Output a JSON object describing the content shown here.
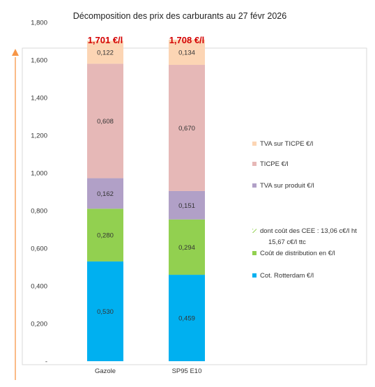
{
  "chart_data": {
    "type": "bar",
    "stacked": true,
    "title": "Décomposition des prix des carburants au 27 févr 2026",
    "categories": [
      "Gazole",
      "SP95 E10"
    ],
    "totals": [
      "1,701 €/l",
      "1,708 €/l"
    ],
    "ylim": [
      0,
      1.8
    ],
    "yticks": [
      "-",
      "0,200",
      "0,400",
      "0,600",
      "0,800",
      "1,000",
      "1,200",
      "1,400",
      "1,600",
      "1,800"
    ],
    "grid": false,
    "legend_position": "right",
    "series": [
      {
        "name": "Cot. Rotterdam €/l",
        "color": "#00b0f0",
        "values": [
          0.53,
          0.459
        ],
        "labels": [
          "0,530",
          "0,459"
        ]
      },
      {
        "name": "Coût de distribution en €/l",
        "color": "#92d050",
        "values": [
          0.28,
          0.294
        ],
        "labels": [
          "0,280",
          "0,294"
        ]
      },
      {
        "name": "dont coût des CEE : 13,06 c€/l ht 15,67 c€/l ttc",
        "color": "#92d050",
        "pattern": "hatch",
        "values": [
          0,
          0
        ],
        "labels": [
          "",
          ""
        ]
      },
      {
        "name": "TVA sur produit €/l",
        "color": "#b1a0c7",
        "values": [
          0.162,
          0.151
        ],
        "labels": [
          "0,162",
          "0,151"
        ]
      },
      {
        "name": "TICPE €/l",
        "color": "#e6b8b7",
        "values": [
          0.608,
          0.67
        ],
        "labels": [
          "0,608",
          "0,670"
        ]
      },
      {
        "name": "TVA sur TICPE €/l",
        "color": "#fcd5b4",
        "values": [
          0.122,
          0.134
        ],
        "labels": [
          "0,122",
          "0,134"
        ]
      }
    ],
    "arrow_color": "#f79646"
  }
}
